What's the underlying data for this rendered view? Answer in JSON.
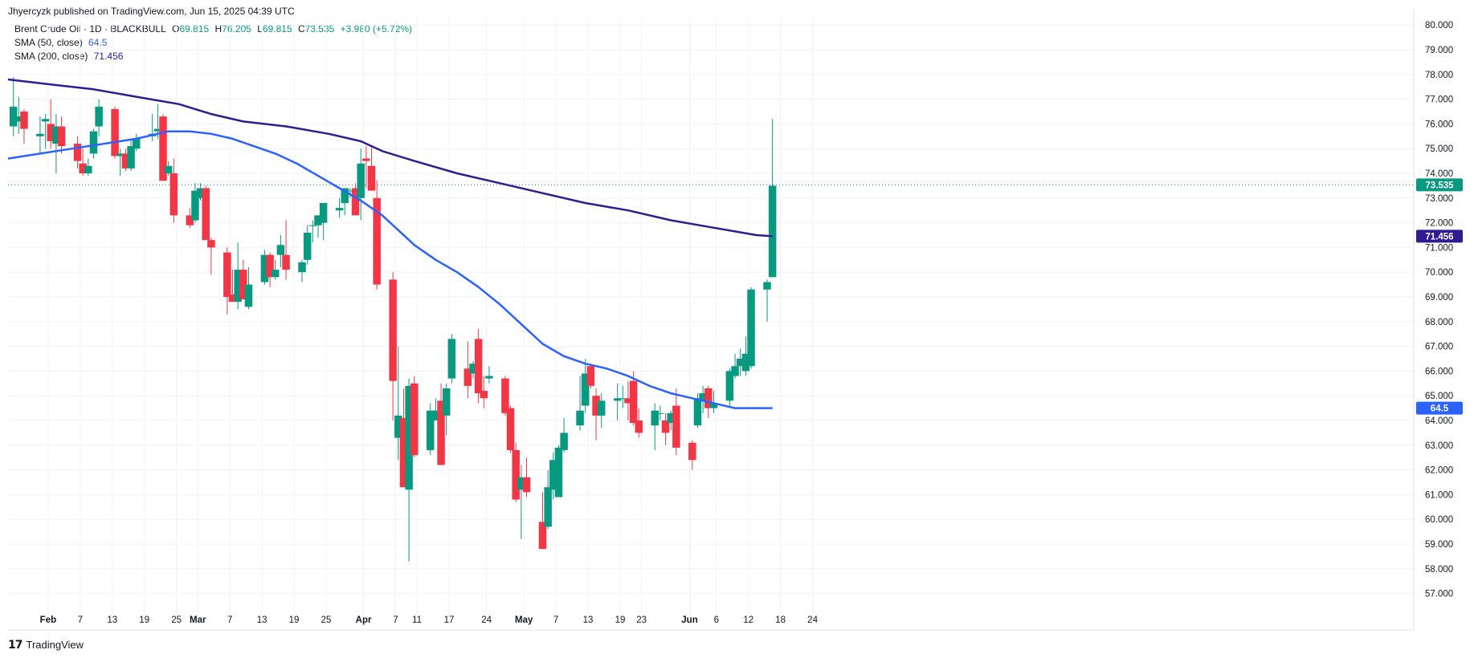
{
  "caption": "Jhyercyzk published on TradingView.com, Jun 15, 2025 04:39 UTC",
  "legend": {
    "symbol": "Brent Crude Oil · 1D · BLACKBULL",
    "open_label": "O",
    "open": "69.815",
    "high_label": "H",
    "high": "76.205",
    "low_label": "L",
    "low": "69.815",
    "close_label": "C",
    "close": "73.535",
    "change": "+3.980 (+5.72%)",
    "sma50_label": "SMA (50, close)",
    "sma50_value": "64.5",
    "sma200_label": "SMA (200, close)",
    "sma200_value": "71.456"
  },
  "branding": "TradingView",
  "colors": {
    "up": "#089981",
    "down": "#f23645",
    "sma50": "#2962ff",
    "sma200": "#311b92",
    "grid": "#f0f3fa"
  },
  "chart_data": {
    "type": "candlestick",
    "ylim": [
      56.5,
      80.3
    ],
    "yticks": [
      "57.000",
      "58.000",
      "59.000",
      "60.000",
      "61.000",
      "62.000",
      "63.000",
      "64.000",
      "65.000",
      "66.000",
      "67.000",
      "68.000",
      "69.000",
      "70.000",
      "71.000",
      "72.000",
      "73.000",
      "74.000",
      "75.000",
      "76.000",
      "77.000",
      "78.000",
      "79.000",
      "80.000"
    ],
    "xticks": [
      {
        "label": "Feb",
        "d": 35.5,
        "bold": true
      },
      {
        "label": "7",
        "d": 41.5
      },
      {
        "label": "13",
        "d": 47.5
      },
      {
        "label": "19",
        "d": 53.5
      },
      {
        "label": "25",
        "d": 59.5
      },
      {
        "label": "Mar",
        "d": 63.5,
        "bold": true
      },
      {
        "label": "7",
        "d": 69.5
      },
      {
        "label": "13",
        "d": 75.5
      },
      {
        "label": "19",
        "d": 81.5
      },
      {
        "label": "25",
        "d": 87.5
      },
      {
        "label": "Apr",
        "d": 94.5,
        "bold": true
      },
      {
        "label": "7",
        "d": 100.5
      },
      {
        "label": "11",
        "d": 104.5
      },
      {
        "label": "17",
        "d": 110.5
      },
      {
        "label": "24",
        "d": 117.5
      },
      {
        "label": "May",
        "d": 124.5,
        "bold": true
      },
      {
        "label": "7",
        "d": 130.5
      },
      {
        "label": "13",
        "d": 136.5
      },
      {
        "label": "19",
        "d": 142.5
      },
      {
        "label": "23",
        "d": 146.5
      },
      {
        "label": "Jun",
        "d": 155.5,
        "bold": true
      },
      {
        "label": "6",
        "d": 160.5
      },
      {
        "label": "12",
        "d": 166.5
      },
      {
        "label": "18",
        "d": 172.5
      },
      {
        "label": "24",
        "d": 178.5
      }
    ],
    "last_price": 73.535,
    "candles": [
      {
        "d": 29,
        "o": 75.9,
        "h": 77.9,
        "l": 75.5,
        "c": 76.7
      },
      {
        "d": 30,
        "o": 76.1,
        "h": 77.1,
        "l": 75.6,
        "c": 76.3
      },
      {
        "d": 31,
        "o": 76.5,
        "h": 76.6,
        "l": 75.2,
        "c": 75.8
      },
      {
        "d": 34,
        "o": 75.5,
        "h": 76.3,
        "l": 74.8,
        "c": 75.6
      },
      {
        "d": 35,
        "o": 76.1,
        "h": 76.4,
        "l": 75.0,
        "c": 76.2
      },
      {
        "d": 36,
        "o": 76.0,
        "h": 77.0,
        "l": 75.0,
        "c": 75.3
      },
      {
        "d": 37,
        "o": 75.2,
        "h": 76.4,
        "l": 74.0,
        "c": 75.9
      },
      {
        "d": 38,
        "o": 75.9,
        "h": 76.3,
        "l": 74.8,
        "c": 75.1
      },
      {
        "d": 41,
        "o": 75.2,
        "h": 75.5,
        "l": 74.2,
        "c": 74.5
      },
      {
        "d": 42,
        "o": 74.4,
        "h": 75.0,
        "l": 73.9,
        "c": 74.0
      },
      {
        "d": 43,
        "o": 74.0,
        "h": 74.6,
        "l": 73.9,
        "c": 74.3
      },
      {
        "d": 44,
        "o": 74.8,
        "h": 75.8,
        "l": 74.6,
        "c": 75.7
      },
      {
        "d": 45,
        "o": 75.9,
        "h": 77.0,
        "l": 75.5,
        "c": 76.7
      },
      {
        "d": 48,
        "o": 76.6,
        "h": 76.7,
        "l": 74.6,
        "c": 74.7
      },
      {
        "d": 49,
        "o": 74.7,
        "h": 75.0,
        "l": 73.9,
        "c": 74.8
      },
      {
        "d": 50,
        "o": 74.8,
        "h": 75.0,
        "l": 74.1,
        "c": 74.2
      },
      {
        "d": 51,
        "o": 74.2,
        "h": 75.4,
        "l": 74.1,
        "c": 75.1
      },
      {
        "d": 52,
        "o": 75.0,
        "h": 75.6,
        "l": 74.9,
        "c": 75.4
      },
      {
        "d": 55,
        "o": 75.5,
        "h": 76.4,
        "l": 75.3,
        "c": 75.6
      },
      {
        "d": 56,
        "o": 75.7,
        "h": 76.8,
        "l": 75.4,
        "c": 75.8
      },
      {
        "d": 57,
        "o": 76.3,
        "h": 76.4,
        "l": 73.7,
        "c": 73.7
      },
      {
        "d": 58,
        "o": 74.0,
        "h": 74.5,
        "l": 73.9,
        "c": 74.3
      },
      {
        "d": 59,
        "o": 74.0,
        "h": 74.6,
        "l": 72.0,
        "c": 72.3
      },
      {
        "d": 62,
        "o": 72.3,
        "h": 72.6,
        "l": 71.8,
        "c": 71.9
      },
      {
        "d": 63,
        "o": 72.1,
        "h": 73.6,
        "l": 72.0,
        "c": 73.3
      },
      {
        "d": 64,
        "o": 73.0,
        "h": 73.6,
        "l": 72.9,
        "c": 73.4
      },
      {
        "d": 65,
        "o": 73.4,
        "h": 73.5,
        "l": 71.3,
        "c": 71.3
      },
      {
        "d": 66,
        "o": 71.3,
        "h": 71.4,
        "l": 69.9,
        "c": 71.0
      },
      {
        "d": 69,
        "o": 70.8,
        "h": 71.0,
        "l": 68.3,
        "c": 69.0
      },
      {
        "d": 70,
        "o": 69.1,
        "h": 70.1,
        "l": 68.8,
        "c": 68.8
      },
      {
        "d": 71,
        "o": 68.8,
        "h": 71.2,
        "l": 68.5,
        "c": 70.1
      },
      {
        "d": 72,
        "o": 70.1,
        "h": 70.5,
        "l": 68.9,
        "c": 68.9
      },
      {
        "d": 73,
        "o": 68.6,
        "h": 70.2,
        "l": 68.5,
        "c": 69.5
      },
      {
        "d": 76,
        "o": 69.6,
        "h": 70.9,
        "l": 69.5,
        "c": 70.7
      },
      {
        "d": 77,
        "o": 70.7,
        "h": 70.8,
        "l": 69.4,
        "c": 69.8
      },
      {
        "d": 78,
        "o": 69.8,
        "h": 70.5,
        "l": 69.7,
        "c": 70.1
      },
      {
        "d": 79,
        "o": 70.7,
        "h": 71.5,
        "l": 70.2,
        "c": 71.1
      },
      {
        "d": 80,
        "o": 70.7,
        "h": 72.1,
        "l": 69.7,
        "c": 70.1
      },
      {
        "d": 83,
        "o": 70.0,
        "h": 70.5,
        "l": 69.6,
        "c": 70.4
      },
      {
        "d": 84,
        "o": 70.5,
        "h": 71.9,
        "l": 70.3,
        "c": 71.6
      },
      {
        "d": 85,
        "o": 71.9,
        "h": 72.1,
        "l": 71.2,
        "c": 71.9
      },
      {
        "d": 86,
        "o": 71.9,
        "h": 72.3,
        "l": 71.4,
        "c": 72.3
      },
      {
        "d": 87,
        "o": 72.0,
        "h": 72.8,
        "l": 71.3,
        "c": 72.8
      },
      {
        "d": 90,
        "o": 72.5,
        "h": 73.0,
        "l": 72.2,
        "c": 72.6
      },
      {
        "d": 91,
        "o": 72.8,
        "h": 73.4,
        "l": 72.3,
        "c": 73.4
      },
      {
        "d": 92,
        "o": 73.3,
        "h": 73.4,
        "l": 73.0,
        "c": 73.3
      },
      {
        "d": 93,
        "o": 73.4,
        "h": 73.6,
        "l": 72.3,
        "c": 72.3
      },
      {
        "d": 94,
        "o": 73.0,
        "h": 75.0,
        "l": 72.1,
        "c": 74.4
      },
      {
        "d": 95,
        "o": 74.6,
        "h": 75.1,
        "l": 73.4,
        "c": 74.5
      },
      {
        "d": 96,
        "o": 74.3,
        "h": 75.1,
        "l": 73.3,
        "c": 73.3
      },
      {
        "d": 97,
        "o": 73.0,
        "h": 73.7,
        "l": 69.3,
        "c": 69.5
      },
      {
        "d": 100,
        "o": 69.7,
        "h": 70.0,
        "l": 64.0,
        "c": 65.6
      },
      {
        "d": 101,
        "o": 63.3,
        "h": 67.0,
        "l": 62.4,
        "c": 64.2
      },
      {
        "d": 102,
        "o": 64.1,
        "h": 65.3,
        "l": 61.3,
        "c": 61.3
      },
      {
        "d": 103,
        "o": 61.2,
        "h": 65.7,
        "l": 58.3,
        "c": 65.4
      },
      {
        "d": 104,
        "o": 65.5,
        "h": 65.8,
        "l": 62.5,
        "c": 62.6
      },
      {
        "d": 107,
        "o": 62.8,
        "h": 64.7,
        "l": 62.6,
        "c": 64.4
      },
      {
        "d": 108,
        "o": 64.0,
        "h": 64.9,
        "l": 64.0,
        "c": 64.4
      },
      {
        "d": 109,
        "o": 64.8,
        "h": 65.5,
        "l": 62.2,
        "c": 62.2
      },
      {
        "d": 110,
        "o": 64.2,
        "h": 65.5,
        "l": 63.4,
        "c": 65.3
      },
      {
        "d": 111,
        "o": 65.7,
        "h": 67.5,
        "l": 65.5,
        "c": 67.3
      },
      {
        "d": 114,
        "o": 66.1,
        "h": 67.2,
        "l": 64.9,
        "c": 65.4
      },
      {
        "d": 115,
        "o": 65.9,
        "h": 66.4,
        "l": 65.7,
        "c": 66.3
      },
      {
        "d": 116,
        "o": 67.3,
        "h": 67.7,
        "l": 64.7,
        "c": 65.1
      },
      {
        "d": 117,
        "o": 65.2,
        "h": 65.8,
        "l": 64.5,
        "c": 64.9
      },
      {
        "d": 118,
        "o": 65.7,
        "h": 66.2,
        "l": 65.5,
        "c": 65.8
      },
      {
        "d": 121,
        "o": 65.7,
        "h": 65.8,
        "l": 64.2,
        "c": 64.3
      },
      {
        "d": 122,
        "o": 64.5,
        "h": 64.6,
        "l": 62.7,
        "c": 62.8
      },
      {
        "d": 123,
        "o": 62.8,
        "h": 63.1,
        "l": 60.7,
        "c": 60.8
      },
      {
        "d": 124,
        "o": 61.2,
        "h": 62.2,
        "l": 59.2,
        "c": 61.7
      },
      {
        "d": 125,
        "o": 61.7,
        "h": 62.5,
        "l": 60.9,
        "c": 61.1
      },
      {
        "d": 128,
        "o": 59.9,
        "h": 61.1,
        "l": 58.8,
        "c": 58.8
      },
      {
        "d": 129,
        "o": 59.7,
        "h": 62.0,
        "l": 59.6,
        "c": 61.3
      },
      {
        "d": 130,
        "o": 61.2,
        "h": 62.7,
        "l": 60.8,
        "c": 62.4
      },
      {
        "d": 131,
        "o": 60.9,
        "h": 63.0,
        "l": 60.9,
        "c": 62.9
      },
      {
        "d": 132,
        "o": 62.8,
        "h": 64.1,
        "l": 62.7,
        "c": 63.5
      },
      {
        "d": 135,
        "o": 63.8,
        "h": 65.8,
        "l": 63.6,
        "c": 64.4
      },
      {
        "d": 136,
        "o": 64.6,
        "h": 66.5,
        "l": 64.3,
        "c": 65.9
      },
      {
        "d": 137,
        "o": 66.2,
        "h": 66.3,
        "l": 65.3,
        "c": 65.4
      },
      {
        "d": 138,
        "o": 65.0,
        "h": 65.3,
        "l": 63.2,
        "c": 64.2
      },
      {
        "d": 139,
        "o": 64.2,
        "h": 65.1,
        "l": 63.7,
        "c": 64.8
      },
      {
        "d": 142,
        "o": 64.8,
        "h": 65.5,
        "l": 64.0,
        "c": 64.9
      },
      {
        "d": 143,
        "o": 64.9,
        "h": 65.4,
        "l": 64.5,
        "c": 64.9
      },
      {
        "d": 144,
        "o": 64.9,
        "h": 65.6,
        "l": 64.0,
        "c": 64.7
      },
      {
        "d": 145,
        "o": 65.6,
        "h": 66.0,
        "l": 63.8,
        "c": 63.9
      },
      {
        "d": 146,
        "o": 64.0,
        "h": 64.5,
        "l": 63.3,
        "c": 63.5
      },
      {
        "d": 149,
        "o": 63.8,
        "h": 64.7,
        "l": 62.8,
        "c": 64.4
      },
      {
        "d": 150,
        "o": 64.3,
        "h": 64.6,
        "l": 64.0,
        "c": 64.3
      },
      {
        "d": 151,
        "o": 64.0,
        "h": 64.3,
        "l": 63.0,
        "c": 63.5
      },
      {
        "d": 152,
        "o": 63.9,
        "h": 64.4,
        "l": 63.6,
        "c": 64.3
      },
      {
        "d": 153,
        "o": 64.6,
        "h": 65.3,
        "l": 62.6,
        "c": 62.9
      },
      {
        "d": 156,
        "o": 63.1,
        "h": 63.2,
        "l": 62.0,
        "c": 62.4
      },
      {
        "d": 157,
        "o": 63.8,
        "h": 65.1,
        "l": 63.7,
        "c": 64.9
      },
      {
        "d": 158,
        "o": 64.8,
        "h": 65.4,
        "l": 64.3,
        "c": 65.1
      },
      {
        "d": 159,
        "o": 65.3,
        "h": 65.4,
        "l": 64.1,
        "c": 64.5
      },
      {
        "d": 160,
        "o": 64.5,
        "h": 65.2,
        "l": 64.3,
        "c": 64.7
      },
      {
        "d": 163,
        "o": 64.8,
        "h": 66.1,
        "l": 64.5,
        "c": 66.0
      },
      {
        "d": 164,
        "o": 65.8,
        "h": 66.7,
        "l": 65.7,
        "c": 66.2
      },
      {
        "d": 165,
        "o": 66.2,
        "h": 66.9,
        "l": 65.8,
        "c": 66.5
      },
      {
        "d": 166,
        "o": 66.0,
        "h": 67.4,
        "l": 65.8,
        "c": 66.7
      },
      {
        "d": 167,
        "o": 66.2,
        "h": 69.4,
        "l": 66.1,
        "c": 69.3
      },
      {
        "d": 170,
        "o": 69.3,
        "h": 69.7,
        "l": 68.0,
        "c": 69.6
      },
      {
        "d": 171,
        "o": 69.8,
        "h": 76.2,
        "l": 69.8,
        "c": 73.5
      }
    ],
    "series": [
      {
        "name": "SMA (50, close)",
        "color": "#2962ff",
        "x": [
          28,
          40,
          52,
          58,
          62,
          66,
          70,
          74,
          78,
          82,
          86,
          90,
          94,
          96,
          98,
          100,
          104,
          108,
          112,
          116,
          120,
          124,
          128,
          132,
          136,
          140,
          144,
          148,
          152,
          156,
          160,
          164,
          168,
          171
        ],
        "y": [
          74.6,
          75.0,
          75.4,
          75.7,
          75.7,
          75.6,
          75.4,
          75.1,
          74.8,
          74.4,
          73.9,
          73.4,
          72.9,
          72.6,
          72.3,
          71.9,
          71.1,
          70.5,
          70.0,
          69.4,
          68.7,
          67.9,
          67.1,
          66.6,
          66.3,
          66.1,
          65.8,
          65.4,
          65.1,
          64.9,
          64.7,
          64.5,
          64.5,
          64.5
        ]
      },
      {
        "name": "SMA (200, close)",
        "color": "#311b92",
        "x": [
          28,
          36,
          44,
          52,
          60,
          66,
          72,
          80,
          88,
          94,
          98,
          104,
          112,
          120,
          128,
          136,
          144,
          152,
          160,
          168,
          171
        ],
        "y": [
          77.8,
          77.6,
          77.4,
          77.1,
          76.8,
          76.4,
          76.1,
          75.9,
          75.6,
          75.3,
          74.9,
          74.5,
          74.0,
          73.6,
          73.2,
          72.8,
          72.5,
          72.1,
          71.8,
          71.5,
          71.456
        ]
      }
    ]
  }
}
